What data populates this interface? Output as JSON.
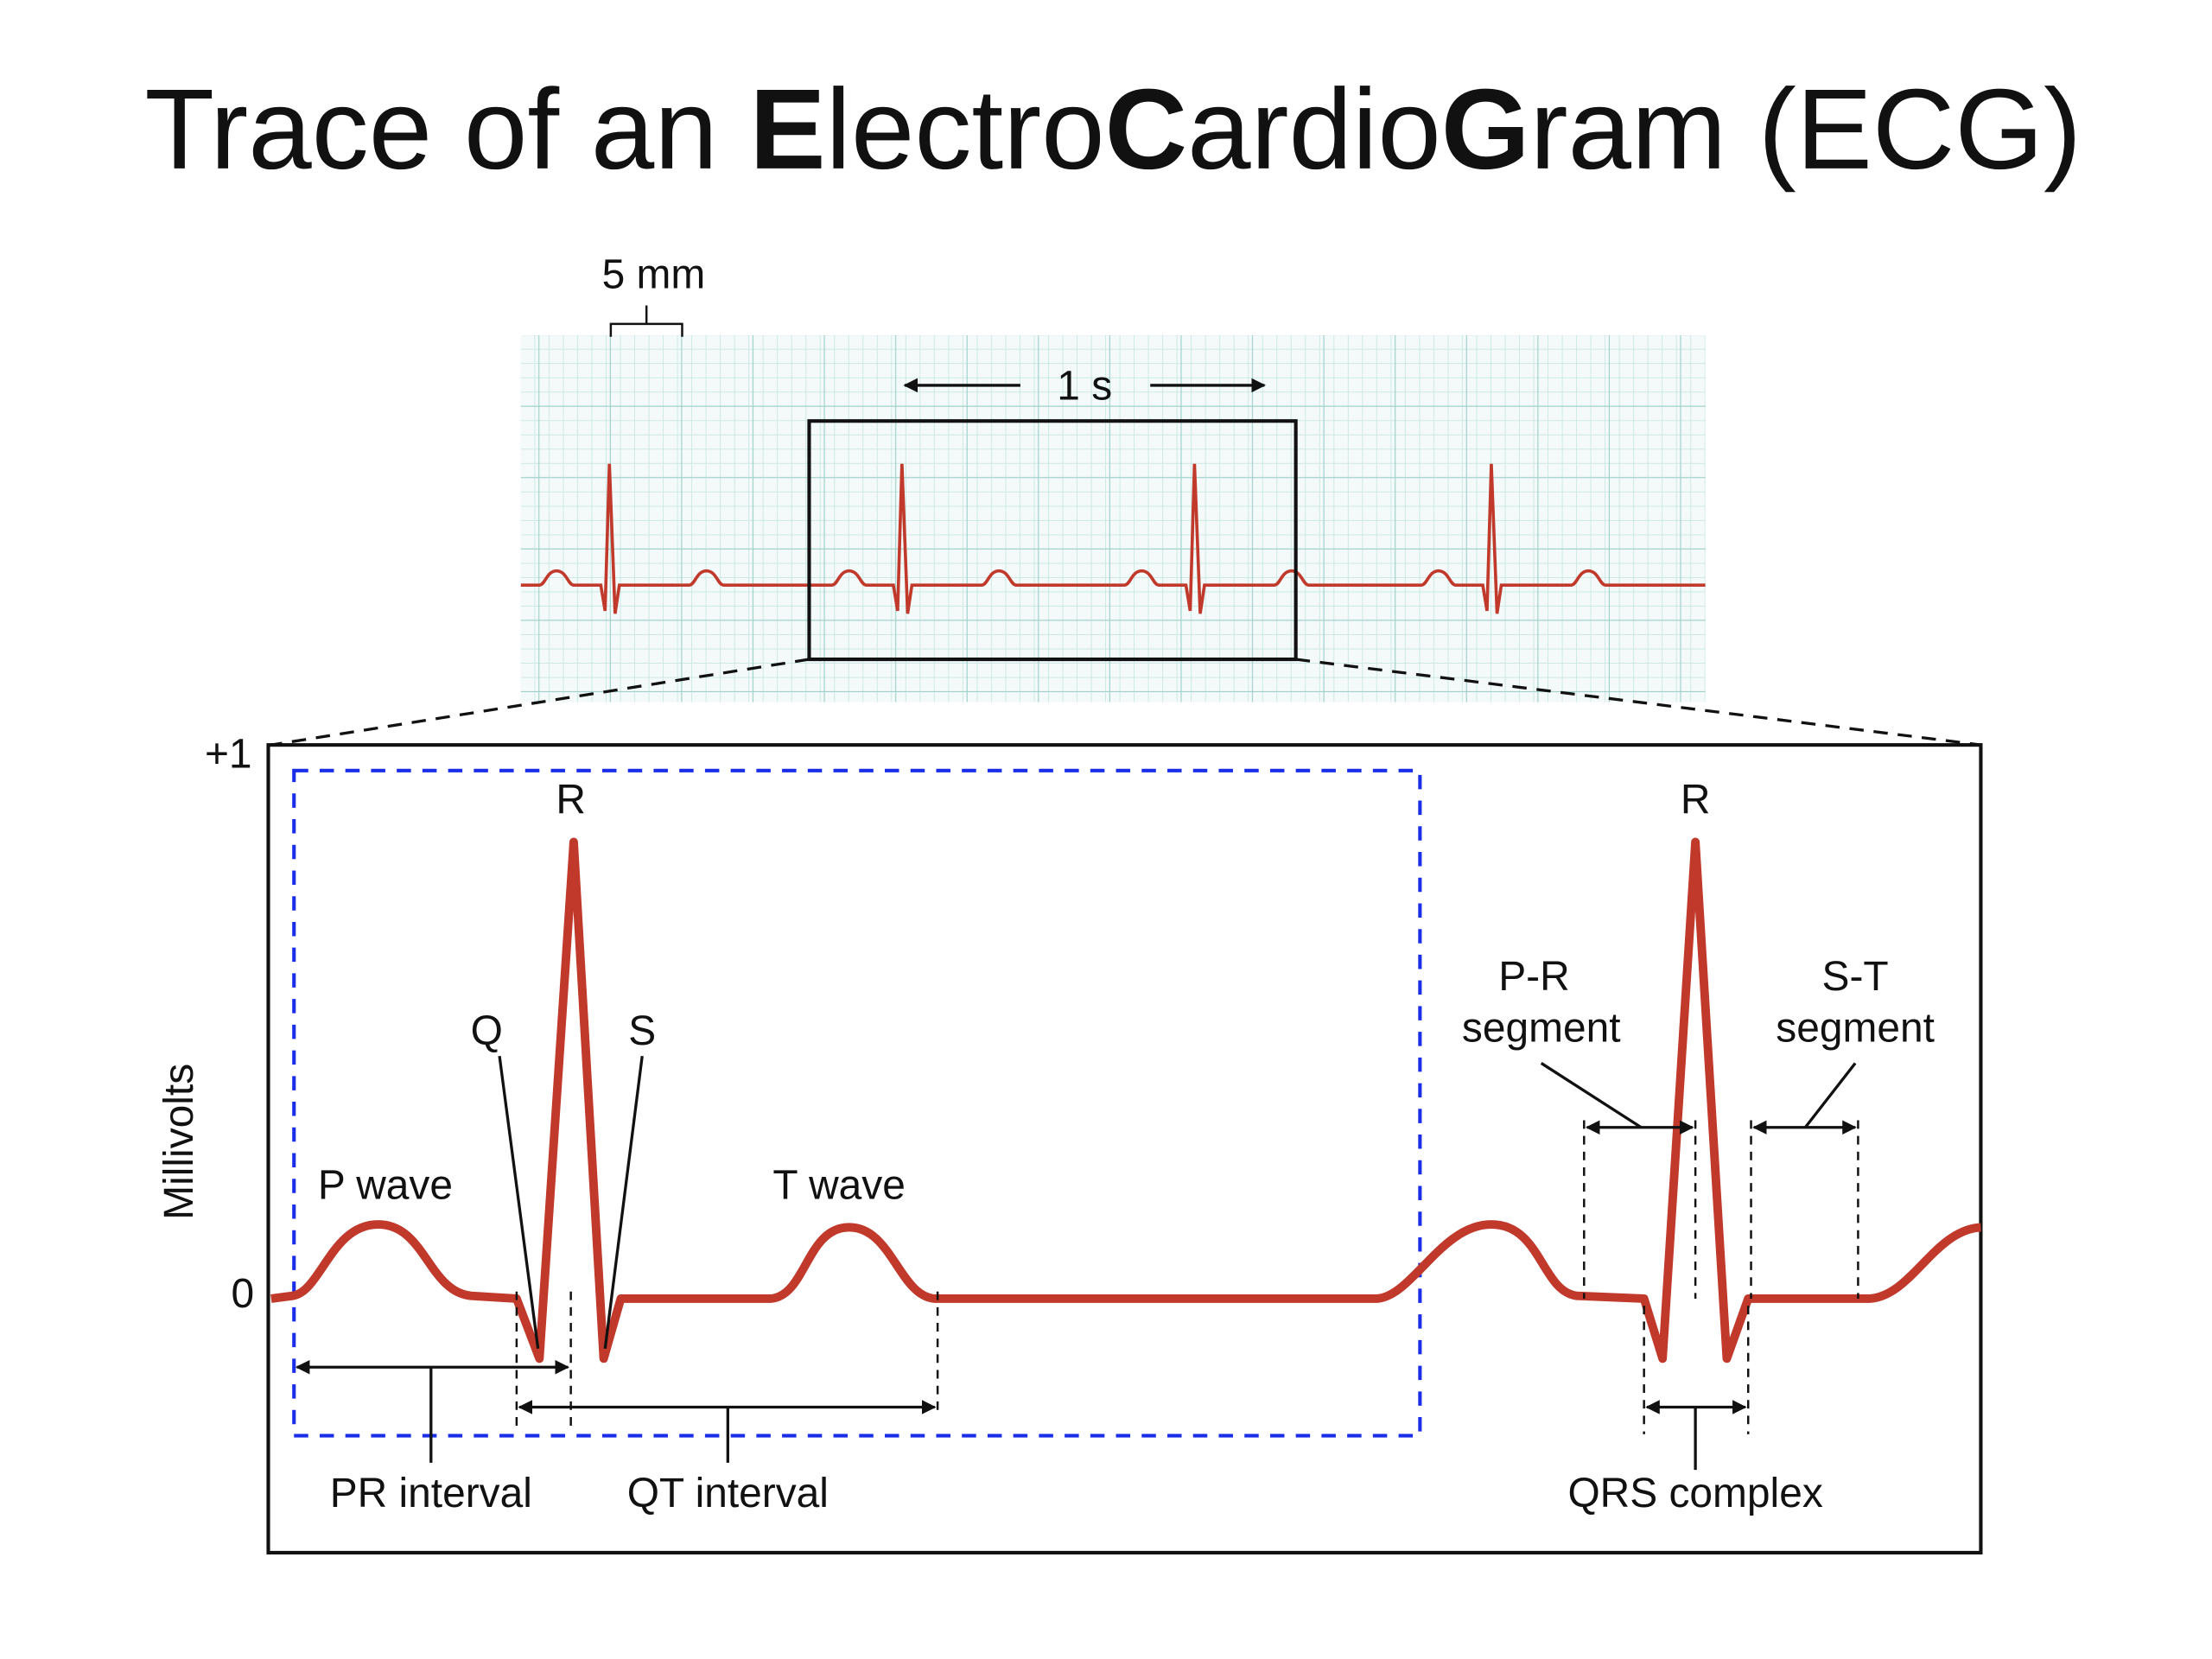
{
  "title": {
    "parts": [
      "Trace of an ",
      "E",
      "lectro",
      "C",
      "ardio",
      "G",
      "ram (ECG)"
    ]
  },
  "strip": {
    "scale_label": "5 mm",
    "time_label": "1 s"
  },
  "detail": {
    "y_axis": {
      "label": "Millivolts",
      "ticks": [
        "+1",
        "0"
      ]
    },
    "waves": {
      "P": "P wave",
      "Q": "Q",
      "R": [
        "R",
        "R"
      ],
      "S": "S",
      "T": "T wave"
    },
    "segments": {
      "pr": [
        "P-R",
        "segment"
      ],
      "st": [
        "S-T",
        "segment"
      ]
    },
    "intervals": {
      "pr": "PR interval",
      "qt": "QT interval",
      "qrs": "QRS complex"
    }
  }
}
